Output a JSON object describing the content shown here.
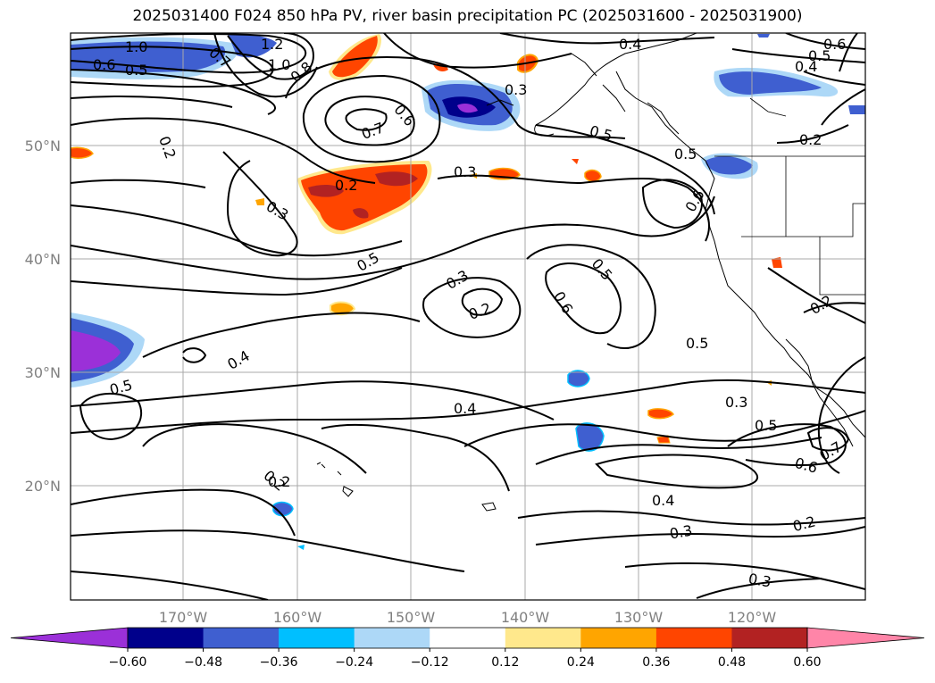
{
  "title": "2025031400 F024 850 hPa PV, river basin precipitation PC (2025031600 - 2025031900)",
  "lat_labels": [
    {
      "value": 50,
      "text": "50°N"
    },
    {
      "value": 40,
      "text": "40°N"
    },
    {
      "value": 30,
      "text": "30°N"
    },
    {
      "value": 20,
      "text": "20°N"
    }
  ],
  "lon_labels": [
    {
      "value": -170,
      "text": "170°W"
    },
    {
      "value": -160,
      "text": "160°W"
    },
    {
      "value": -150,
      "text": "150°W"
    },
    {
      "value": -140,
      "text": "140°W"
    },
    {
      "value": -130,
      "text": "130°W"
    },
    {
      "value": -120,
      "text": "120°W"
    }
  ],
  "contour_labels": [
    "1.0",
    "1.2",
    "0.6",
    "0.5",
    "1.0",
    "0.8",
    "0.7",
    "0.4",
    "0.6",
    "0.5",
    "0.4",
    "0.3",
    "0.7",
    "0.6",
    "0.2",
    "0.5",
    "0.5",
    "0.2",
    "0.2",
    "0.3",
    "0.3",
    "0.6",
    "0.3",
    "0.2",
    "0.5",
    "0.5",
    "0.2",
    "0.6",
    "0.2",
    "0.4",
    "0.5",
    "0.5",
    "0.4",
    "0.3",
    "0.5",
    "0.7",
    "0.6",
    "0.2",
    "0.4",
    "0.3",
    "0.2",
    "0.3"
  ],
  "colorbar": {
    "ticks": [
      "−0.60",
      "−0.48",
      "−0.36",
      "−0.24",
      "−0.12",
      "0.12",
      "0.24",
      "0.36",
      "0.48",
      "0.60"
    ],
    "colors": [
      "#9b30d8",
      "#00008b",
      "#3f5fd0",
      "#00bfff",
      "#add8f7",
      "#ffffff",
      "#ffe88c",
      "#ffa500",
      "#ff4500",
      "#b22222",
      "#ff85a8"
    ]
  }
}
